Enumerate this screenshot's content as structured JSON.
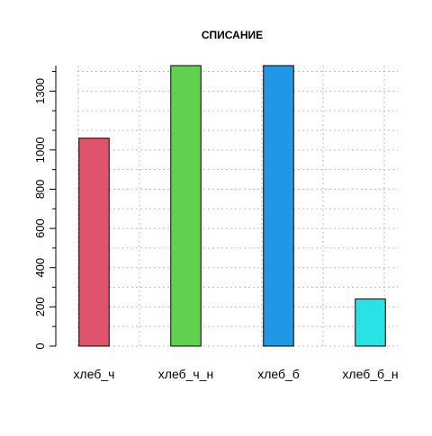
{
  "chart_data": {
    "type": "bar",
    "title": "СПИСАНИЕ",
    "xlabel": "",
    "ylabel": "",
    "categories": [
      "хлеб_ч",
      "хлеб_ч_н",
      "хлеб_б",
      "хлеб_б_н"
    ],
    "values": [
      1060,
      1430,
      1430,
      240
    ],
    "colors": [
      "#df536b",
      "#61d04f",
      "#2297e6",
      "#28e2e5"
    ],
    "ylim": [
      0,
      1430
    ],
    "y_major_ticks": [
      0,
      200,
      400,
      600,
      800,
      1000,
      1300
    ],
    "y_minor_step": 100,
    "grid": true
  }
}
